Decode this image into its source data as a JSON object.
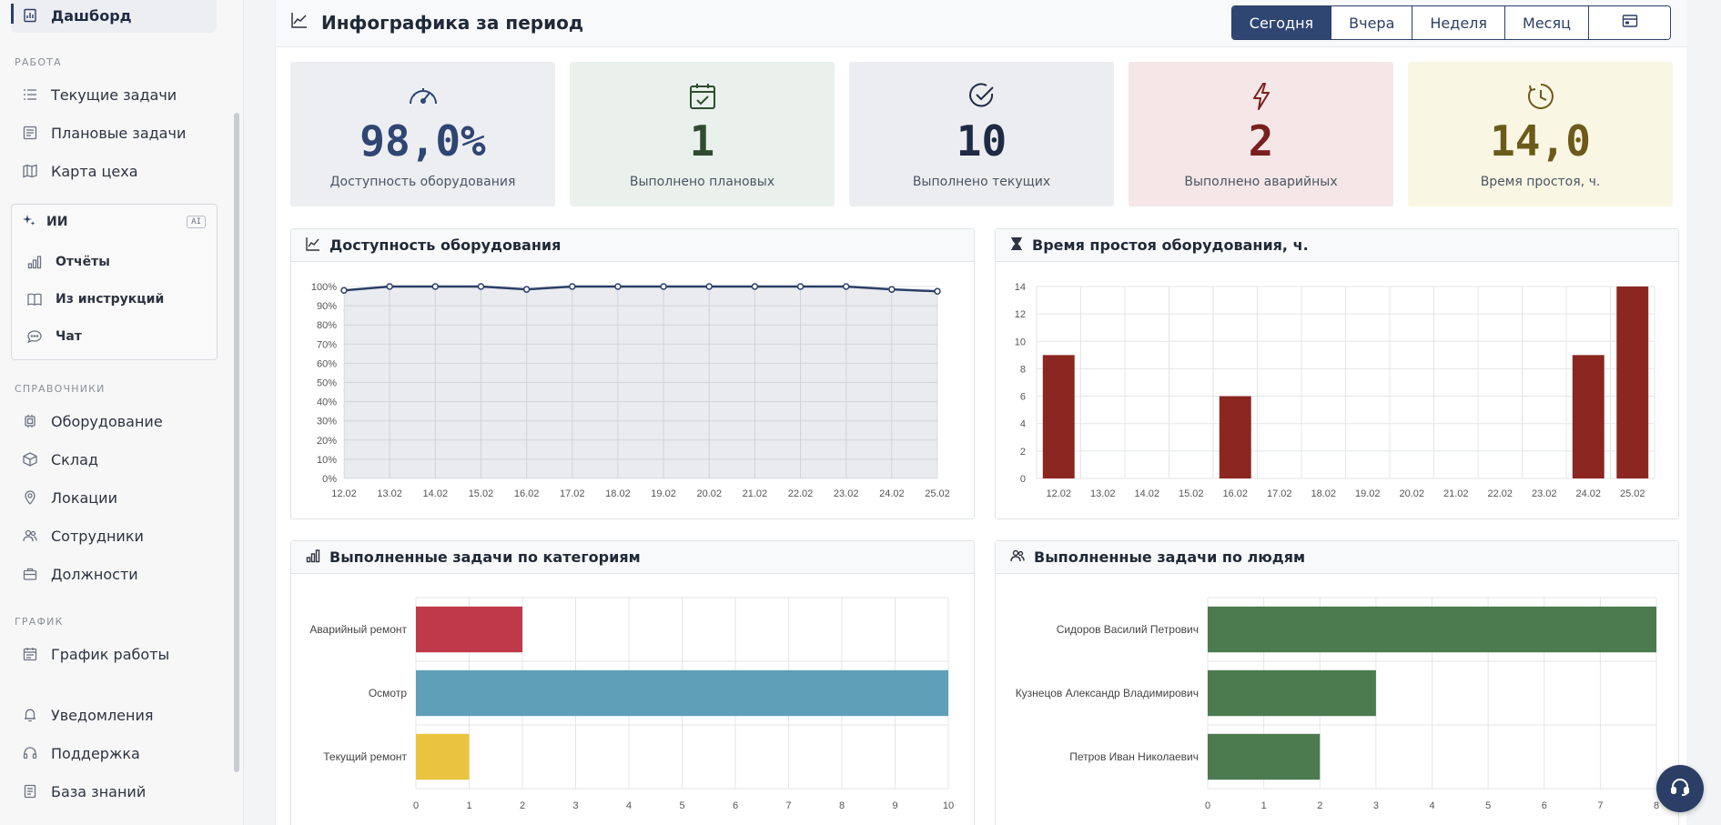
{
  "sidebar": {
    "dashboard": "Дашборд",
    "section_work": "РАБОТА",
    "work_items": [
      "Текущие задачи",
      "Плановые задачи",
      "Карта цеха"
    ],
    "ai": {
      "title": "ИИ",
      "badge": "AI",
      "items": [
        "Отчёты",
        "Из инструкций",
        "Чат"
      ]
    },
    "section_refs": "СПРАВОЧНИКИ",
    "ref_items": [
      "Оборудование",
      "Склад",
      "Локации",
      "Сотрудники",
      "Должности"
    ],
    "section_schedule": "ГРАФИК",
    "schedule_items": [
      "График работы"
    ],
    "bottom_items": [
      "Уведомления",
      "Поддержка",
      "База знаний"
    ]
  },
  "header": {
    "title": "Инфографика за период",
    "periods": [
      "Сегодня",
      "Вчера",
      "Неделя",
      "Месяц"
    ],
    "active_period": "Сегодня"
  },
  "kpis": [
    {
      "value": "98,0%",
      "label": "Доступность оборудования",
      "color": "#2f4673",
      "bg": "#eceef2",
      "icon": "speedometer-icon"
    },
    {
      "value": "1",
      "label": "Выполнено плановых",
      "color": "#2e4d2e",
      "bg": "#eaf1ec",
      "icon": "calendar-check-icon"
    },
    {
      "value": "10",
      "label": "Выполнено текущих",
      "color": "#1f2a44",
      "bg": "#ecedf0",
      "icon": "check-circle-icon"
    },
    {
      "value": "2",
      "label": "Выполнено аварийных",
      "color": "#7a1f1f",
      "bg": "#f5e7e7",
      "icon": "lightning-icon"
    },
    {
      "value": "14,0",
      "label": "Время простоя, ч.",
      "color": "#6b5a1a",
      "bg": "#faf6e4",
      "icon": "clock-icon"
    }
  ],
  "panels": {
    "availability": "Доступность оборудования",
    "downtime": "Время простоя оборудования, ч.",
    "categories": "Выполненные задачи по категориям",
    "people": "Выполненные задачи по людям"
  },
  "chart_data": [
    {
      "type": "area",
      "title": "Доступность оборудования",
      "x": [
        "12.02",
        "13.02",
        "14.02",
        "15.02",
        "16.02",
        "17.02",
        "18.02",
        "19.02",
        "20.02",
        "21.02",
        "22.02",
        "23.02",
        "24.02",
        "25.02"
      ],
      "values": [
        98,
        100,
        100,
        100,
        98.5,
        100,
        100,
        100,
        100,
        100,
        100,
        100,
        98.5,
        97.5
      ],
      "yticks": [
        "0%",
        "10%",
        "20%",
        "30%",
        "40%",
        "50%",
        "60%",
        "70%",
        "80%",
        "90%",
        "100%"
      ],
      "ylim": [
        0,
        100
      ],
      "color": "#2b3f66",
      "grid": true
    },
    {
      "type": "bar",
      "title": "Время простоя оборудования, ч.",
      "categories": [
        "12.02",
        "13.02",
        "14.02",
        "15.02",
        "16.02",
        "17.02",
        "18.02",
        "19.02",
        "20.02",
        "21.02",
        "22.02",
        "23.02",
        "24.02",
        "25.02"
      ],
      "values": [
        9,
        0,
        0,
        0,
        6,
        0,
        0,
        0,
        0,
        0,
        0,
        0,
        9,
        14
      ],
      "yticks": [
        "0",
        "2",
        "4",
        "6",
        "8",
        "10",
        "12",
        "14"
      ],
      "ylim": [
        0,
        14
      ],
      "color": "#8b2620",
      "grid": true
    },
    {
      "type": "bar",
      "orientation": "horizontal",
      "title": "Выполненные задачи по категориям",
      "categories": [
        "Аварийный ремонт",
        "Осмотр",
        "Текущий ремонт"
      ],
      "values": [
        2,
        10,
        1
      ],
      "colors": [
        "#c0394a",
        "#5f9fb8",
        "#ebc43f"
      ],
      "xticks": [
        "0",
        "1",
        "2",
        "3",
        "4",
        "5",
        "6",
        "7",
        "8",
        "9",
        "10"
      ],
      "xlim": [
        0,
        10
      ],
      "grid": true
    },
    {
      "type": "bar",
      "orientation": "horizontal",
      "title": "Выполненные задачи по людям",
      "categories": [
        "Сидоров Василий Петрович",
        "Кузнецов Александр Владимирович",
        "Петров Иван Николаевич"
      ],
      "values": [
        8,
        3,
        2
      ],
      "color": "#4b7b4f",
      "xticks": [
        "0",
        "1",
        "2",
        "3",
        "4",
        "5",
        "6",
        "7",
        "8"
      ],
      "xlim": [
        0,
        8
      ],
      "grid": true
    }
  ]
}
